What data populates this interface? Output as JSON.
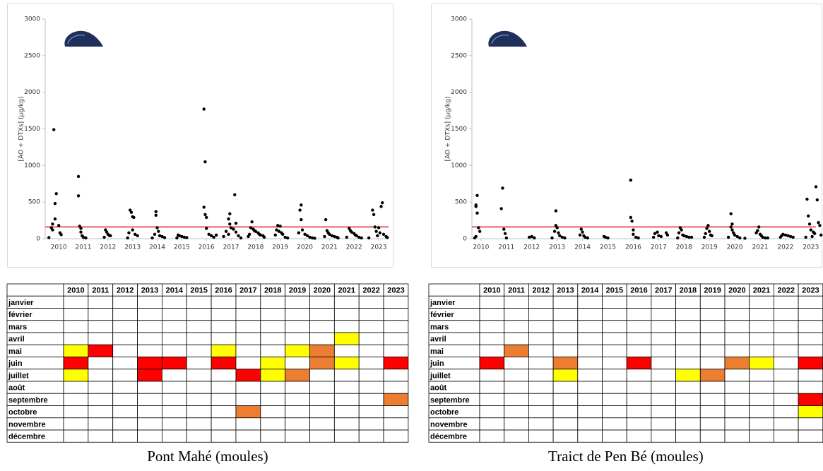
{
  "chart_data": [
    {
      "type": "scatter",
      "y_label": "[AO + DTXs] (µg/kg)",
      "color": "#000000",
      "xlim": [
        2009.45,
        2023.4
      ],
      "ylim": [
        0,
        3000
      ],
      "xticks": [
        2010,
        2011,
        2012,
        2013,
        2014,
        2015,
        2016,
        2017,
        2018,
        2019,
        2020,
        2021,
        2022,
        2023
      ],
      "yticks": [
        0,
        500,
        1000,
        1500,
        2000,
        2500,
        3000
      ],
      "threshold": 160,
      "threshold_color": "#e8241c",
      "x": [
        2009.8,
        2009.9,
        2009.85,
        2009.85,
        2009.75,
        2010.0,
        2009.7,
        2009.75,
        2010.05,
        2010.1,
        2009.6,
        2010.8,
        2010.8,
        2010.85,
        2010.9,
        2010.9,
        2010.95,
        2011.0,
        2011.1,
        2011.9,
        2011.95,
        2012.0,
        2012.05,
        2012.1,
        2011.85,
        2012.9,
        2012.95,
        2013.0,
        2013.05,
        2013.0,
        2012.85,
        2013.1,
        2013.2,
        2012.8,
        2013.95,
        2013.95,
        2014.0,
        2014.05,
        2013.9,
        2014.1,
        2014.2,
        2014.3,
        2013.8,
        2014.85,
        2014.9,
        2015.0,
        2015.1,
        2015.2,
        2014.8,
        2015.9,
        2015.95,
        2015.9,
        2015.95,
        2016.0,
        2016.0,
        2016.1,
        2016.2,
        2016.3,
        2016.4,
        2017.15,
        2016.95,
        2016.9,
        2016.95,
        2017.2,
        2017.0,
        2017.1,
        2016.8,
        2017.2,
        2016.9,
        2017.3,
        2016.7,
        2017.4,
        2017.85,
        2017.8,
        2017.9,
        2017.95,
        2018.0,
        2018.1,
        2018.15,
        2018.2,
        2018.3,
        2017.7,
        2017.75,
        2018.35,
        2018.9,
        2019.0,
        2018.85,
        2018.95,
        2019.05,
        2018.8,
        2019.1,
        2019.2,
        2019.3,
        2019.85,
        2019.8,
        2019.85,
        2019.9,
        2019.75,
        2020.0,
        2020.1,
        2020.2,
        2020.3,
        2020.4,
        2020.85,
        2020.9,
        2020.95,
        2021.0,
        2021.1,
        2021.2,
        2021.3,
        2020.8,
        2021.35,
        2021.8,
        2021.85,
        2021.9,
        2022.0,
        2022.05,
        2022.1,
        2022.2,
        2021.7,
        2022.3,
        2022.75,
        2022.8,
        2022.85,
        2023.15,
        2023.1,
        2023.0,
        2022.9,
        2023.05,
        2023.2,
        2023.3,
        2022.95,
        2023.35,
        2022.6
      ],
      "values": [
        1490,
        615,
        480,
        270,
        200,
        180,
        150,
        120,
        80,
        55,
        15,
        850,
        585,
        170,
        140,
        90,
        40,
        20,
        10,
        120,
        90,
        60,
        45,
        40,
        20,
        390,
        360,
        300,
        290,
        120,
        80,
        60,
        40,
        10,
        370,
        320,
        150,
        100,
        60,
        40,
        30,
        15,
        10,
        50,
        40,
        30,
        20,
        15,
        10,
        1770,
        1050,
        430,
        330,
        290,
        140,
        60,
        40,
        20,
        50,
        600,
        340,
        270,
        200,
        210,
        150,
        130,
        100,
        90,
        60,
        40,
        30,
        10,
        230,
        150,
        130,
        110,
        100,
        80,
        60,
        50,
        40,
        30,
        60,
        20,
        180,
        170,
        120,
        100,
        80,
        50,
        60,
        20,
        10,
        460,
        390,
        260,
        120,
        80,
        60,
        40,
        20,
        10,
        5,
        260,
        110,
        80,
        60,
        40,
        30,
        20,
        30,
        10,
        140,
        110,
        90,
        70,
        50,
        40,
        20,
        20,
        10,
        390,
        330,
        160,
        490,
        440,
        150,
        100,
        80,
        60,
        30,
        40,
        15,
        10
      ]
    },
    {
      "type": "scatter",
      "y_label": "[AO + DTXs] (µg/kg)",
      "color": "#000000",
      "xlim": [
        2009.64,
        2023.2
      ],
      "ylim": [
        0,
        3000
      ],
      "xticks": [
        2010,
        2011,
        2012,
        2013,
        2014,
        2015,
        2016,
        2017,
        2018,
        2019,
        2020,
        2021,
        2022,
        2023
      ],
      "yticks": [
        0,
        500,
        1000,
        1500,
        2000,
        2500,
        3000
      ],
      "threshold": 160,
      "threshold_color": "#e8241c",
      "x": [
        2009.85,
        2009.8,
        2009.8,
        2009.85,
        2009.9,
        2009.95,
        2009.8,
        2009.75,
        2010.85,
        2010.8,
        2010.9,
        2010.95,
        2011.0,
        2011.9,
        2012.0,
        2012.1,
        2012.95,
        2012.95,
        2013.0,
        2012.9,
        2013.05,
        2013.1,
        2013.2,
        2012.8,
        2013.3,
        2013.95,
        2014.0,
        2013.9,
        2014.05,
        2014.1,
        2014.2,
        2014.85,
        2014.9,
        2015.0,
        2015.9,
        2015.9,
        2015.95,
        2016.0,
        2016.0,
        2016.1,
        2016.2,
        2016.85,
        2016.95,
        2017.0,
        2017.1,
        2017.3,
        2017.35,
        2016.8,
        2017.85,
        2017.9,
        2017.8,
        2017.95,
        2018.0,
        2018.1,
        2018.2,
        2018.3,
        2017.75,
        2018.9,
        2018.95,
        2019.0,
        2018.85,
        2019.05,
        2019.1,
        2018.8,
        2019.85,
        2019.9,
        2019.85,
        2019.9,
        2019.95,
        2020.0,
        2020.1,
        2020.2,
        2019.75,
        2020.4,
        2020.95,
        2020.9,
        2020.85,
        2021.0,
        2021.05,
        2021.1,
        2021.2,
        2021.3,
        2021.85,
        2021.9,
        2022.0,
        2022.1,
        2022.2,
        2022.3,
        2021.8,
        2022.85,
        2023.2,
        2023.25,
        2022.9,
        2022.95,
        2023.3,
        2023.35,
        2023.0,
        2023.1,
        2023.15,
        2023.4,
        2022.8,
        2023.05
      ],
      "values": [
        590,
        460,
        440,
        350,
        150,
        100,
        30,
        10,
        690,
        410,
        130,
        70,
        10,
        20,
        30,
        10,
        380,
        180,
        150,
        100,
        80,
        40,
        20,
        10,
        10,
        130,
        90,
        50,
        40,
        20,
        10,
        30,
        20,
        10,
        800,
        290,
        240,
        120,
        60,
        20,
        10,
        70,
        90,
        40,
        30,
        80,
        50,
        20,
        150,
        120,
        80,
        50,
        40,
        30,
        20,
        20,
        10,
        140,
        180,
        100,
        70,
        50,
        40,
        20,
        340,
        200,
        160,
        120,
        80,
        50,
        30,
        10,
        20,
        5,
        160,
        110,
        80,
        60,
        40,
        20,
        10,
        10,
        40,
        60,
        50,
        40,
        30,
        20,
        20,
        540,
        710,
        530,
        310,
        200,
        220,
        180,
        120,
        90,
        70,
        50,
        20,
        30
      ]
    }
  ],
  "tables": [
    {
      "caption": "Pont Mahé (moules)",
      "columns": [
        "2010",
        "2011",
        "2012",
        "2013",
        "2014",
        "2015",
        "2016",
        "2017",
        "2018",
        "2019",
        "2020",
        "2021",
        "2022",
        "2023"
      ],
      "rows": [
        {
          "label": "janvier",
          "cells": [
            null,
            null,
            null,
            null,
            null,
            null,
            null,
            null,
            null,
            null,
            null,
            null,
            null,
            null
          ]
        },
        {
          "label": "février",
          "cells": [
            null,
            null,
            null,
            null,
            null,
            null,
            null,
            null,
            null,
            null,
            null,
            null,
            null,
            null
          ]
        },
        {
          "label": "mars",
          "cells": [
            null,
            null,
            null,
            null,
            null,
            null,
            null,
            null,
            null,
            null,
            null,
            null,
            null,
            null
          ]
        },
        {
          "label": "avril",
          "cells": [
            null,
            null,
            null,
            null,
            null,
            null,
            null,
            null,
            null,
            null,
            null,
            "#ffff00",
            null,
            null
          ]
        },
        {
          "label": "mai",
          "cells": [
            "#ffff00",
            "#ff0000",
            null,
            null,
            null,
            null,
            "#ffff00",
            null,
            null,
            "#ffff00",
            "#ed7d31",
            null,
            null,
            null
          ]
        },
        {
          "label": "juin",
          "cells": [
            "#ff0000",
            null,
            null,
            "#ff0000",
            "#ff0000",
            null,
            "#ff0000",
            null,
            "#ffff00",
            null,
            "#ed7d31",
            "#ffff00",
            null,
            "#ff0000"
          ]
        },
        {
          "label": "juillet",
          "cells": [
            "#ffff00",
            null,
            null,
            "#ff0000",
            null,
            null,
            null,
            "#ff0000",
            "#ffff00",
            "#ed7d31",
            null,
            null,
            null,
            null
          ]
        },
        {
          "label": "août",
          "cells": [
            null,
            null,
            null,
            null,
            null,
            null,
            null,
            null,
            null,
            null,
            null,
            null,
            null,
            null
          ]
        },
        {
          "label": "septembre",
          "cells": [
            null,
            null,
            null,
            null,
            null,
            null,
            null,
            null,
            null,
            null,
            null,
            null,
            null,
            "#ed7d31"
          ]
        },
        {
          "label": "octobre",
          "cells": [
            null,
            null,
            null,
            null,
            null,
            null,
            null,
            "#ed7d31",
            null,
            null,
            null,
            null,
            null,
            null
          ]
        },
        {
          "label": "novembre",
          "cells": [
            null,
            null,
            null,
            null,
            null,
            null,
            null,
            null,
            null,
            null,
            null,
            null,
            null,
            null
          ]
        },
        {
          "label": "décembre",
          "cells": [
            null,
            null,
            null,
            null,
            null,
            null,
            null,
            null,
            null,
            null,
            null,
            null,
            null,
            null
          ]
        }
      ]
    },
    {
      "caption": "Traict de Pen Bé (moules)",
      "columns": [
        "2010",
        "2011",
        "2012",
        "2013",
        "2014",
        "2015",
        "2016",
        "2017",
        "2018",
        "2019",
        "2020",
        "2021",
        "2022",
        "2023"
      ],
      "rows": [
        {
          "label": "janvier",
          "cells": [
            null,
            null,
            null,
            null,
            null,
            null,
            null,
            null,
            null,
            null,
            null,
            null,
            null,
            null
          ]
        },
        {
          "label": "février",
          "cells": [
            null,
            null,
            null,
            null,
            null,
            null,
            null,
            null,
            null,
            null,
            null,
            null,
            null,
            null
          ]
        },
        {
          "label": "mars",
          "cells": [
            null,
            null,
            null,
            null,
            null,
            null,
            null,
            null,
            null,
            null,
            null,
            null,
            null,
            null
          ]
        },
        {
          "label": "avril",
          "cells": [
            null,
            null,
            null,
            null,
            null,
            null,
            null,
            null,
            null,
            null,
            null,
            null,
            null,
            null
          ]
        },
        {
          "label": "mai",
          "cells": [
            null,
            "#ed7d31",
            null,
            null,
            null,
            null,
            null,
            null,
            null,
            null,
            null,
            null,
            null,
            null
          ]
        },
        {
          "label": "juin",
          "cells": [
            "#ff0000",
            null,
            null,
            "#ed7d31",
            null,
            null,
            "#ff0000",
            null,
            null,
            null,
            "#ed7d31",
            "#ffff00",
            null,
            "#ff0000"
          ]
        },
        {
          "label": "juillet",
          "cells": [
            null,
            null,
            null,
            "#ffff00",
            null,
            null,
            null,
            null,
            "#ffff00",
            "#ed7d31",
            null,
            null,
            null,
            null
          ]
        },
        {
          "label": "août",
          "cells": [
            null,
            null,
            null,
            null,
            null,
            null,
            null,
            null,
            null,
            null,
            null,
            null,
            null,
            null
          ]
        },
        {
          "label": "septembre",
          "cells": [
            null,
            null,
            null,
            null,
            null,
            null,
            null,
            null,
            null,
            null,
            null,
            null,
            null,
            "#ff0000"
          ]
        },
        {
          "label": "octobre",
          "cells": [
            null,
            null,
            null,
            null,
            null,
            null,
            null,
            null,
            null,
            null,
            null,
            null,
            null,
            "#ffff00"
          ]
        },
        {
          "label": "novembre",
          "cells": [
            null,
            null,
            null,
            null,
            null,
            null,
            null,
            null,
            null,
            null,
            null,
            null,
            null,
            null
          ]
        },
        {
          "label": "décembre",
          "cells": [
            null,
            null,
            null,
            null,
            null,
            null,
            null,
            null,
            null,
            null,
            null,
            null,
            null,
            null
          ]
        }
      ]
    }
  ]
}
